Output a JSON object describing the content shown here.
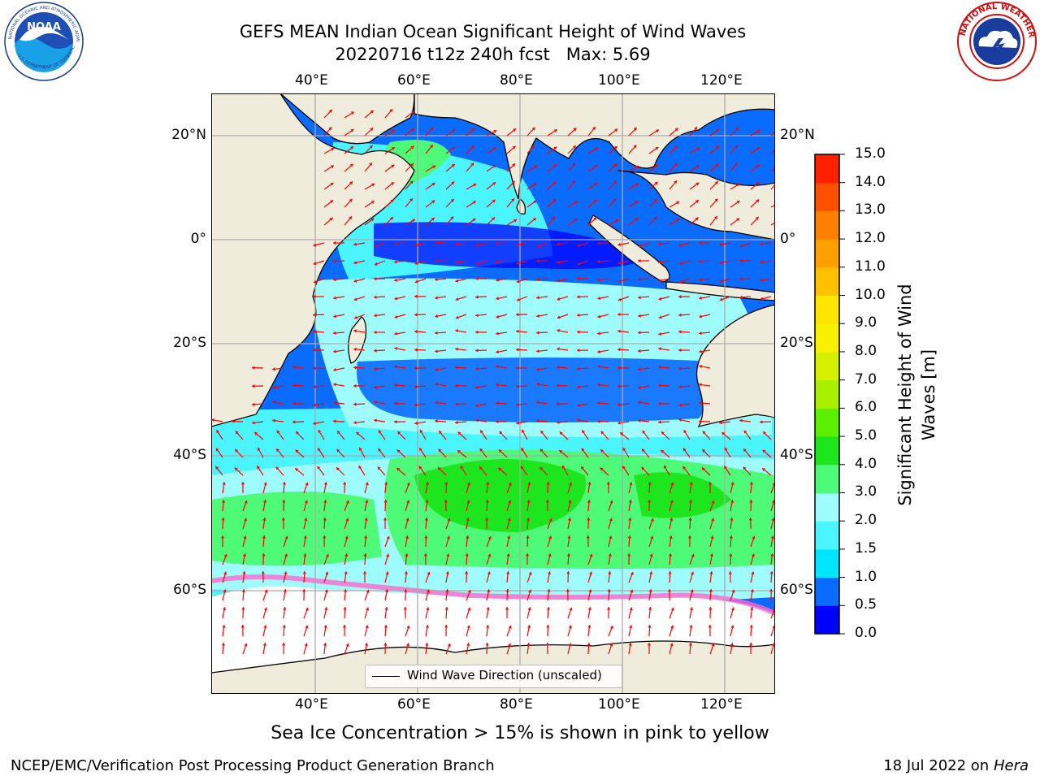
{
  "header": {
    "title_line1": "GEFS MEAN Indian Ocean Significant Height of Wind Waves",
    "title_line2": "20220716 t12z 240h fcst   Max: 5.69"
  },
  "logos": {
    "left": {
      "name": "NOAA",
      "ring_text": "NATIONAL OCEANIC AND ATMOSPHERIC ADMINISTRATION · U.S. DEPARTMENT OF COMMERCE"
    },
    "right": {
      "name": "National Weather Service",
      "ring_text": "NATIONAL WEATHER SERVICE"
    }
  },
  "map": {
    "region": "Indian Ocean",
    "lon_range": [
      20,
      130
    ],
    "lat_range": [
      -73,
      28
    ],
    "lon_labels": [
      "40°E",
      "60°E",
      "80°E",
      "100°E",
      "120°E"
    ],
    "lat_labels": [
      "20°N",
      "0°",
      "20°S",
      "40°S",
      "60°S"
    ],
    "land_color": "#efecdc",
    "ice_free_color": "#ffffff",
    "vector_color": "#ff0000",
    "legend": {
      "label": "Wind Wave Direction (unscaled)"
    }
  },
  "colorbar": {
    "label": "Significant Height of Wind Waves [m]",
    "label_line1": "Significant Height of Wind",
    "label_line2": "Waves [m]",
    "ticks": [
      "0.0",
      "0.5",
      "1.0",
      "1.5",
      "2.0",
      "3.0",
      "4.0",
      "5.0",
      "6.0",
      "7.0",
      "8.0",
      "9.0",
      "10.0",
      "11.0",
      "12.0",
      "13.0",
      "14.0",
      "15.0"
    ],
    "colors": [
      "#0000ff",
      "#0a6cff",
      "#00e6ff",
      "#4af5ff",
      "#9ffcfc",
      "#4dfb78",
      "#1ee61e",
      "#5af000",
      "#a8f000",
      "#d4f200",
      "#f8f000",
      "#ffe600",
      "#ffc000",
      "#ffa000",
      "#ff8000",
      "#ff5000",
      "#ff2000"
    ]
  },
  "notes": {
    "sea_ice": "Sea Ice Concentration > 15% is shown in pink to yellow"
  },
  "footer": {
    "left": "NCEP/EMC/Verification Post Processing Product Generation Branch",
    "right_prefix": "18 Jul 2022 on ",
    "right_machine": "Hera"
  }
}
